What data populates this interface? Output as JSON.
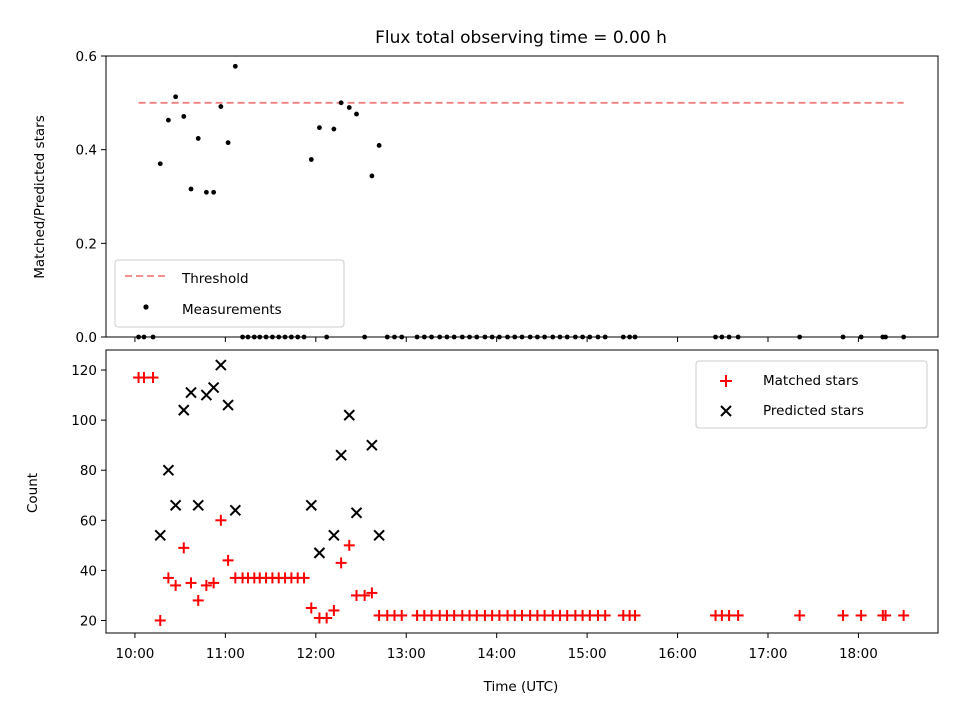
{
  "chart_data": [
    {
      "type": "scatter",
      "title": "Flux total observing time = 0.00 h",
      "xlabel": "",
      "ylabel": "Matched/Predicted stars",
      "xlim": [
        9.68,
        18.88
      ],
      "ylim": [
        0,
        0.6
      ],
      "yticks": [
        0.0,
        0.2,
        0.4,
        0.6
      ],
      "ytick_labels": [
        "0.0",
        "0.2",
        "0.4",
        "0.6"
      ],
      "legend": {
        "position": "lower-left",
        "entries": [
          "Threshold",
          "Measurements"
        ]
      },
      "threshold": {
        "name": "Threshold",
        "value": 0.5,
        "x_range": [
          10.04,
          18.5
        ],
        "color": "#f08080"
      },
      "series": [
        {
          "name": "Measurements",
          "color": "#000000",
          "marker": "dot",
          "x": [
            10.04,
            10.1,
            10.2,
            10.28,
            10.37,
            10.45,
            10.54,
            10.62,
            10.7,
            10.79,
            10.87,
            10.95,
            11.03,
            11.11,
            11.19,
            11.25,
            11.32,
            11.38,
            11.45,
            11.52,
            11.59,
            11.66,
            11.73,
            11.8,
            11.87,
            11.95,
            12.04,
            12.12,
            12.2,
            12.28,
            12.37,
            12.45,
            12.54,
            12.62,
            12.7,
            12.79,
            12.87,
            12.95,
            13.12,
            13.2,
            13.28,
            13.37,
            13.45,
            13.53,
            13.62,
            13.7,
            13.78,
            13.87,
            13.95,
            14.03,
            14.12,
            14.2,
            14.28,
            14.37,
            14.45,
            14.53,
            14.62,
            14.7,
            14.78,
            14.87,
            14.95,
            15.03,
            15.12,
            15.2,
            15.4,
            15.47,
            15.53,
            16.42,
            16.49,
            16.57,
            16.67,
            17.35,
            17.83,
            18.03,
            18.27,
            18.3,
            18.5
          ],
          "y": [
            0.0,
            0.0,
            0.0,
            0.37,
            0.463,
            0.513,
            0.471,
            0.316,
            0.424,
            0.309,
            0.309,
            0.492,
            0.415,
            0.578,
            0.0,
            0.0,
            0.0,
            0.0,
            0.0,
            0.0,
            0.0,
            0.0,
            0.0,
            0.0,
            0.0,
            0.379,
            0.447,
            0.0,
            0.444,
            0.5,
            0.49,
            0.476,
            0.0,
            0.344,
            0.409,
            0.0,
            0.0,
            0.0,
            0.0,
            0.0,
            0.0,
            0.0,
            0.0,
            0.0,
            0.0,
            0.0,
            0.0,
            0.0,
            0.0,
            0.0,
            0.0,
            0.0,
            0.0,
            0.0,
            0.0,
            0.0,
            0.0,
            0.0,
            0.0,
            0.0,
            0.0,
            0.0,
            0.0,
            0.0,
            0.0,
            0.0,
            0.0,
            0.0,
            0.0,
            0.0,
            0.0,
            0.0,
            0.0,
            0.0,
            0.0,
            0.0,
            0.0
          ]
        }
      ]
    },
    {
      "type": "scatter",
      "title": "",
      "xlabel": "Time (UTC)",
      "ylabel": "Count",
      "xlim": [
        9.68,
        18.88
      ],
      "ylim": [
        15,
        128
      ],
      "xticks": [
        10,
        11,
        12,
        13,
        14,
        15,
        16,
        17,
        18
      ],
      "xtick_labels": [
        "10:00",
        "11:00",
        "12:00",
        "13:00",
        "14:00",
        "15:00",
        "16:00",
        "17:00",
        "18:00"
      ],
      "yticks": [
        20,
        40,
        60,
        80,
        100,
        120
      ],
      "ytick_labels": [
        "20",
        "40",
        "60",
        "80",
        "100",
        "120"
      ],
      "legend": {
        "position": "top-right",
        "entries": [
          "Matched stars",
          "Predicted stars"
        ]
      },
      "series": [
        {
          "name": "Matched stars",
          "color": "#ff0000",
          "marker": "plus",
          "x": [
            10.04,
            10.1,
            10.2,
            10.28,
            10.37,
            10.45,
            10.54,
            10.62,
            10.7,
            10.79,
            10.87,
            10.95,
            11.03,
            11.11,
            11.19,
            11.25,
            11.32,
            11.38,
            11.45,
            11.52,
            11.59,
            11.66,
            11.73,
            11.8,
            11.87,
            11.95,
            12.04,
            12.12,
            12.2,
            12.28,
            12.37,
            12.45,
            12.54,
            12.62,
            12.7,
            12.79,
            12.87,
            12.95,
            13.12,
            13.2,
            13.28,
            13.37,
            13.45,
            13.53,
            13.62,
            13.7,
            13.78,
            13.87,
            13.95,
            14.03,
            14.12,
            14.2,
            14.28,
            14.37,
            14.45,
            14.53,
            14.62,
            14.7,
            14.78,
            14.87,
            14.95,
            15.03,
            15.12,
            15.2,
            15.4,
            15.47,
            15.53,
            16.42,
            16.49,
            16.57,
            16.67,
            17.35,
            17.83,
            18.03,
            18.27,
            18.3,
            18.5
          ],
          "y": [
            117,
            117,
            117,
            20,
            37,
            34,
            49,
            35,
            28,
            34,
            35,
            60,
            44,
            37,
            37,
            37,
            37,
            37,
            37,
            37,
            37,
            37,
            37,
            37,
            37,
            25,
            21,
            21,
            24,
            43,
            50,
            30,
            30,
            31,
            22,
            22,
            22,
            22,
            22,
            22,
            22,
            22,
            22,
            22,
            22,
            22,
            22,
            22,
            22,
            22,
            22,
            22,
            22,
            22,
            22,
            22,
            22,
            22,
            22,
            22,
            22,
            22,
            22,
            22,
            22,
            22,
            22,
            22,
            22,
            22,
            22,
            22,
            22,
            22,
            22,
            22,
            22
          ]
        },
        {
          "name": "Predicted stars",
          "color": "#000000",
          "marker": "x",
          "x": [
            10.28,
            10.37,
            10.45,
            10.54,
            10.62,
            10.7,
            10.79,
            10.87,
            10.95,
            11.03,
            11.11,
            11.95,
            12.04,
            12.2,
            12.28,
            12.37,
            12.45,
            12.62,
            12.7
          ],
          "y": [
            54,
            80,
            66,
            104,
            111,
            66,
            110,
            113,
            122,
            106,
            64,
            66,
            47,
            54,
            86,
            102,
            63,
            90,
            54
          ]
        }
      ]
    }
  ]
}
